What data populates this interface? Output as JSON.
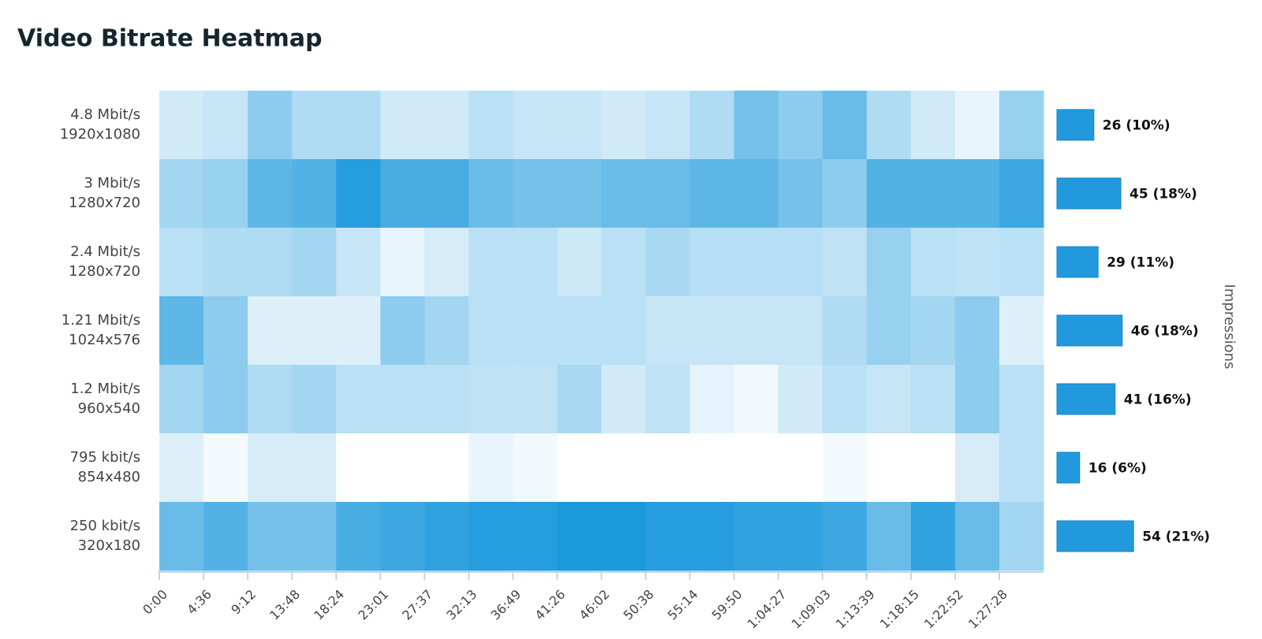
{
  "chart_data": [
    {
      "type": "heatmap",
      "title": "Video Bitrate Heatmap",
      "x": [
        "0:00",
        "4:36",
        "9:12",
        "13:48",
        "18:24",
        "23:01",
        "27:37",
        "32:13",
        "36:49",
        "41:26",
        "46:02",
        "50:38",
        "55:14",
        "59:50",
        "1:04:27",
        "1:09:03",
        "1:13:39",
        "1:18:15",
        "1:22:52",
        "1:27:28"
      ],
      "y": [
        [
          "4.8 Mbit/s",
          "1920x1080"
        ],
        [
          "3 Mbit/s",
          "1280x720"
        ],
        [
          "2.4 Mbit/s",
          "1280x720"
        ],
        [
          "1.21 Mbit/s",
          "1024x576"
        ],
        [
          "1.2 Mbit/s",
          "960x540"
        ],
        [
          "795 kbit/s",
          "854x480"
        ],
        [
          "250 kbit/s",
          "320x180"
        ]
      ],
      "z": [
        [
          2,
          2.5,
          5,
          3.5,
          3.5,
          2,
          2,
          3,
          2.5,
          2.5,
          2,
          2.5,
          3.5,
          6,
          5,
          6.5,
          3.5,
          2,
          1,
          4.5
        ],
        [
          4,
          4.5,
          7,
          7.5,
          9.5,
          8,
          8,
          6.5,
          6,
          6,
          6.5,
          6.5,
          7,
          7,
          6,
          5,
          7.5,
          7.5,
          7.5,
          8.5
        ],
        [
          3,
          3.5,
          3.5,
          4,
          2.5,
          1,
          1.8,
          3,
          3,
          2.2,
          3,
          3.8,
          3.2,
          3.2,
          3.2,
          2.8,
          4.5,
          3,
          2.8,
          3
        ],
        [
          7,
          5,
          1.5,
          1.5,
          1.5,
          5,
          4,
          3,
          3,
          3,
          3,
          2.5,
          2.5,
          2.5,
          2.5,
          3.5,
          4.5,
          4,
          5,
          1.5
        ],
        [
          4,
          5,
          3.5,
          4,
          3,
          3,
          3,
          2.8,
          2.8,
          3.8,
          2,
          2.8,
          1.2,
          0.6,
          2,
          3,
          2.5,
          3,
          5,
          3
        ],
        [
          1.5,
          0.5,
          1.8,
          1.8,
          0,
          0,
          0,
          1,
          0.6,
          0,
          0,
          0,
          0,
          0,
          0,
          0.5,
          0,
          0,
          1.8,
          3
        ],
        [
          6.5,
          7.5,
          6,
          6,
          8,
          8.5,
          9,
          9.5,
          9.5,
          10,
          10,
          9.5,
          9.5,
          9,
          9,
          8.5,
          6.5,
          9,
          6.5,
          4
        ]
      ],
      "zlim": [
        0,
        10
      ],
      "color": "#1a98dc"
    },
    {
      "type": "bar",
      "orientation": "horizontal",
      "y_axis_label": "Impressions",
      "values": [
        26,
        45,
        29,
        46,
        41,
        16,
        54
      ],
      "value_labels": [
        "26 (10%)",
        "45 (18%)",
        "29 (11%)",
        "46 (18%)",
        "41 (16%)",
        "16 (6%)",
        "54 (21%)"
      ],
      "color": "#2199dc"
    }
  ]
}
